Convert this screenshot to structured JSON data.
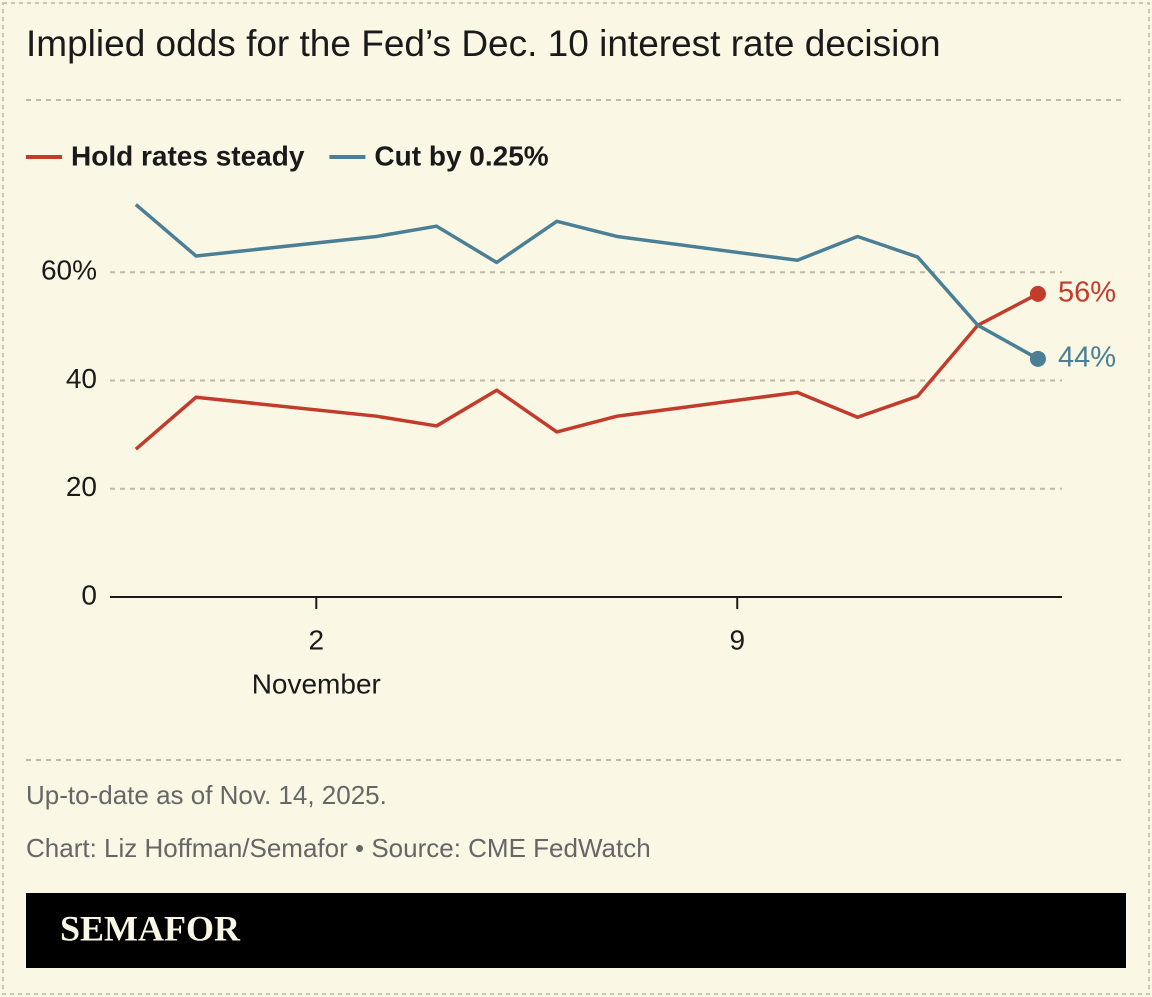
{
  "chart_data": {
    "type": "line",
    "title": "Implied odds for the Fed’s Dec. 10 interest rate decision",
    "x": [
      -1,
      0,
      3,
      4,
      5,
      6,
      7,
      10,
      11,
      12,
      13,
      14
    ],
    "x_label": "November",
    "xlim": [
      -1.43,
      14.4
    ],
    "xticks": [
      2,
      9
    ],
    "ylim": [
      0,
      75
    ],
    "yticks": [
      {
        "value": 0,
        "label": "0"
      },
      {
        "value": 20,
        "label": "20"
      },
      {
        "value": 40,
        "label": "40"
      },
      {
        "value": 60,
        "label": "60%"
      }
    ],
    "grid": true,
    "series": [
      {
        "name": "Hold rates steady",
        "color": "#c23b2b",
        "values": [
          27.3,
          36.9,
          33.4,
          31.6,
          38.2,
          30.5,
          33.4,
          37.8,
          33.2,
          37.1,
          50.2,
          56
        ],
        "value_labels": [
          null,
          null,
          null,
          null,
          null,
          null,
          null,
          null,
          null,
          null,
          null,
          "56%"
        ]
      },
      {
        "name": "Cut by 0.25%",
        "color": "#4a7f95",
        "values": [
          72.5,
          63,
          66.6,
          68.5,
          61.8,
          69.4,
          66.6,
          62.2,
          66.6,
          62.8,
          50.2,
          44
        ],
        "value_labels": [
          null,
          null,
          null,
          null,
          null,
          null,
          null,
          null,
          null,
          null,
          null,
          "44%"
        ]
      }
    ],
    "note": "Up-to-date as of Nov. 14, 2025.",
    "source": "Chart: Liz Hoffman/Semafor • Source: CME FedWatch"
  },
  "footer": {
    "brand": "SEMAFOR"
  }
}
